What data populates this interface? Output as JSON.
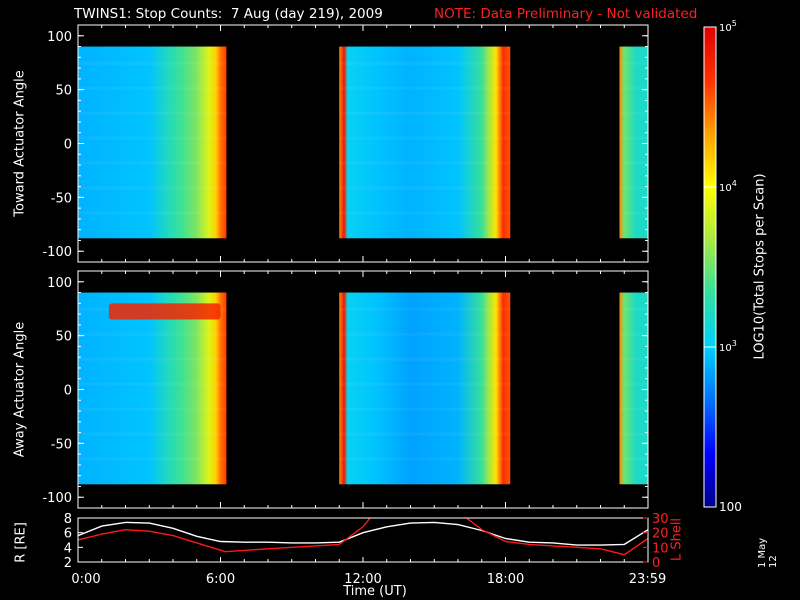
{
  "title": {
    "main": "TWINS1: Stop Counts:  7 Aug (day 219), 2009",
    "note": "NOTE: Data Preliminary - Not validated"
  },
  "colors": {
    "background": "#000000",
    "note_text": "#ff2020",
    "r_line": "#ffffff",
    "l_line": "#ff1818"
  },
  "colorbar": {
    "label": "LOG10(Total Stops per Scan)",
    "ticks": [
      "100",
      "10^3",
      "10^4",
      "10^5"
    ],
    "scale": "log",
    "range": [
      100,
      100000
    ],
    "palette": [
      "#00008c",
      "#0000ff",
      "#0070ff",
      "#00d0ff",
      "#30e0a0",
      "#a8e840",
      "#ffff00",
      "#ffa000",
      "#ff3000",
      "#e00000"
    ]
  },
  "stamp": "1 May 12",
  "chart_data": [
    {
      "type": "heatmap",
      "name": "toward",
      "ylabel": "Toward Actuator Angle",
      "ylim": [
        -110,
        110
      ],
      "yticks": [
        100,
        50,
        0,
        -50,
        -100
      ],
      "xlim": [
        0,
        24
      ],
      "data_y_range": [
        -88,
        90
      ],
      "segments": [
        {
          "start": 0,
          "end": 6.25,
          "profile": [
            [
              0,
              0.3
            ],
            [
              3.0,
              0.32
            ],
            [
              3.9,
              0.42
            ],
            [
              4.4,
              0.46
            ],
            [
              5.0,
              0.52
            ],
            [
              5.5,
              0.62
            ],
            [
              5.8,
              0.72
            ],
            [
              6.0,
              0.82
            ],
            [
              6.25,
              0.88
            ]
          ]
        },
        {
          "start": 11.0,
          "end": 18.2,
          "profile": [
            [
              11.0,
              0.8
            ],
            [
              11.2,
              0.95
            ],
            [
              11.35,
              0.35
            ],
            [
              12.5,
              0.32
            ],
            [
              14.0,
              0.3
            ],
            [
              16.0,
              0.32
            ],
            [
              17.0,
              0.45
            ],
            [
              17.3,
              0.55
            ],
            [
              17.6,
              0.7
            ],
            [
              17.9,
              0.9
            ],
            [
              18.2,
              0.85
            ]
          ]
        },
        {
          "start": 22.8,
          "end": 24.0,
          "profile": [
            [
              22.8,
              0.8
            ],
            [
              23.0,
              0.5
            ],
            [
              23.5,
              0.4
            ],
            [
              24.0,
              0.4
            ]
          ]
        }
      ]
    },
    {
      "type": "heatmap",
      "name": "away",
      "ylabel": "Away Actuator Angle",
      "ylim": [
        -110,
        110
      ],
      "yticks": [
        100,
        50,
        0,
        -50,
        -100
      ],
      "xlim": [
        0,
        24
      ],
      "data_y_range": [
        -88,
        90
      ],
      "segments": [
        {
          "start": 0,
          "end": 6.25,
          "profile": [
            [
              0,
              0.3
            ],
            [
              3.0,
              0.32
            ],
            [
              3.9,
              0.42
            ],
            [
              4.4,
              0.46
            ],
            [
              5.0,
              0.52
            ],
            [
              5.5,
              0.62
            ],
            [
              5.8,
              0.72
            ],
            [
              6.0,
              0.82
            ],
            [
              6.25,
              0.88
            ]
          ]
        },
        {
          "start": 11.0,
          "end": 18.2,
          "profile": [
            [
              11.0,
              0.8
            ],
            [
              11.2,
              0.95
            ],
            [
              11.35,
              0.35
            ],
            [
              12.5,
              0.32
            ],
            [
              14.0,
              0.28
            ],
            [
              16.0,
              0.3
            ],
            [
              17.0,
              0.45
            ],
            [
              17.3,
              0.55
            ],
            [
              17.6,
              0.7
            ],
            [
              17.9,
              0.9
            ],
            [
              18.2,
              0.85
            ]
          ]
        },
        {
          "start": 22.8,
          "end": 24.0,
          "profile": [
            [
              22.8,
              0.8
            ],
            [
              23.0,
              0.5
            ],
            [
              23.5,
              0.4
            ],
            [
              24.0,
              0.4
            ]
          ]
        }
      ],
      "features": [
        {
          "label": "high-angle enhancement",
          "x_start": 1.3,
          "x_end": 6.0,
          "y_start": 65,
          "y_end": 80,
          "level": 0.92
        }
      ]
    },
    {
      "type": "line",
      "name": "orbit",
      "xlabel": "Time (UT)",
      "xticks": [
        "0:00",
        "6:00",
        "12:00",
        "18:00",
        "23:59"
      ],
      "xtick_values": [
        0,
        6,
        12,
        18,
        23.98
      ],
      "xlim": [
        0,
        24
      ],
      "left_axis": {
        "label": "R [RE]",
        "ticks": [
          2,
          4,
          6,
          8
        ],
        "ylim": [
          2,
          8
        ]
      },
      "right_axis": {
        "label": "L Shell",
        "ticks": [
          0,
          10,
          20,
          30
        ],
        "ylim": [
          0,
          30
        ]
      },
      "series": [
        {
          "axis": "left",
          "x": [
            0,
            1,
            2,
            3,
            4,
            5,
            6,
            7,
            8,
            9,
            10,
            11,
            12,
            13,
            14,
            15,
            16,
            17,
            18,
            19,
            20,
            21,
            22,
            23,
            24
          ],
          "y": [
            5.6,
            6.9,
            7.4,
            7.3,
            6.6,
            5.5,
            4.8,
            4.7,
            4.7,
            4.6,
            4.6,
            4.7,
            6.0,
            6.8,
            7.3,
            7.4,
            7.1,
            6.3,
            5.2,
            4.7,
            4.6,
            4.3,
            4.3,
            4.4,
            6.4
          ]
        },
        {
          "axis": "right",
          "x": [
            0,
            1,
            2,
            3,
            4,
            5,
            6.2,
            8,
            10,
            11,
            12,
            12.4,
            16.2,
            17,
            18,
            19,
            20,
            21,
            22,
            23,
            24
          ],
          "y": [
            15,
            19,
            22,
            21,
            18,
            13,
            7,
            9,
            11,
            12,
            24,
            32,
            32,
            22,
            14,
            12,
            11,
            10,
            9,
            5,
            16
          ]
        }
      ]
    }
  ]
}
